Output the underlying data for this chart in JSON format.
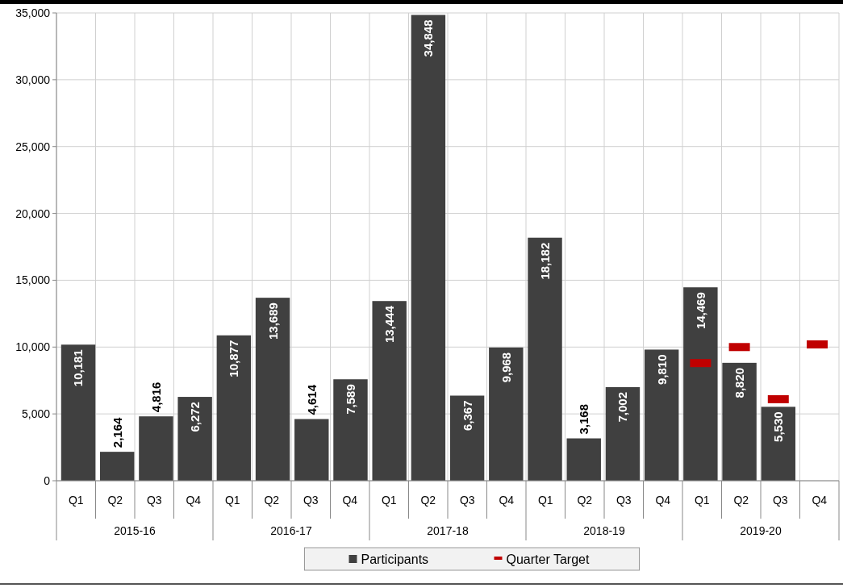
{
  "chart_data": {
    "type": "bar",
    "categories": [
      "Q1",
      "Q2",
      "Q3",
      "Q4",
      "Q1",
      "Q2",
      "Q3",
      "Q4",
      "Q1",
      "Q2",
      "Q3",
      "Q4",
      "Q1",
      "Q2",
      "Q3",
      "Q4",
      "Q1",
      "Q2",
      "Q3",
      "Q4"
    ],
    "series": [
      {
        "name": "Participants",
        "color": "#404040",
        "values": [
          10181,
          2164,
          4816,
          6272,
          10877,
          13689,
          4614,
          7589,
          13444,
          34848,
          6367,
          9968,
          18182,
          3168,
          7002,
          9810,
          14469,
          8820,
          5530,
          null
        ],
        "value_labels": [
          "10,181",
          "2,164",
          "4,816",
          "6,272",
          "10,877",
          "13,689",
          "4,614",
          "7,589",
          "13,444",
          "34,848",
          "6,367",
          "9,968",
          "18,182",
          "3,168",
          "7,002",
          "9,810",
          "14,469",
          "8,820",
          "5,530",
          null
        ]
      },
      {
        "name": "Quarter Target",
        "type": "scatter",
        "color": "#c00000",
        "values": [
          null,
          null,
          null,
          null,
          null,
          null,
          null,
          null,
          null,
          null,
          null,
          null,
          null,
          null,
          null,
          null,
          8800,
          10000,
          6100,
          10200
        ]
      }
    ],
    "annotations": [
      "2015-16",
      "2016-17",
      "2017-18",
      "2018-19",
      "2019-20"
    ],
    "ylim": [
      0,
      35000
    ],
    "yticks": [
      {
        "value": 0,
        "label": "0"
      },
      {
        "value": 5000,
        "label": "5,000"
      },
      {
        "value": 10000,
        "label": "10,000"
      },
      {
        "value": 15000,
        "label": "15,000"
      },
      {
        "value": 20000,
        "label": "20,000"
      },
      {
        "value": 25000,
        "label": "25,000"
      },
      {
        "value": 30000,
        "label": "30,000"
      },
      {
        "value": 35000,
        "label": "35,000"
      }
    ],
    "grid": true,
    "legend": "bottom"
  }
}
